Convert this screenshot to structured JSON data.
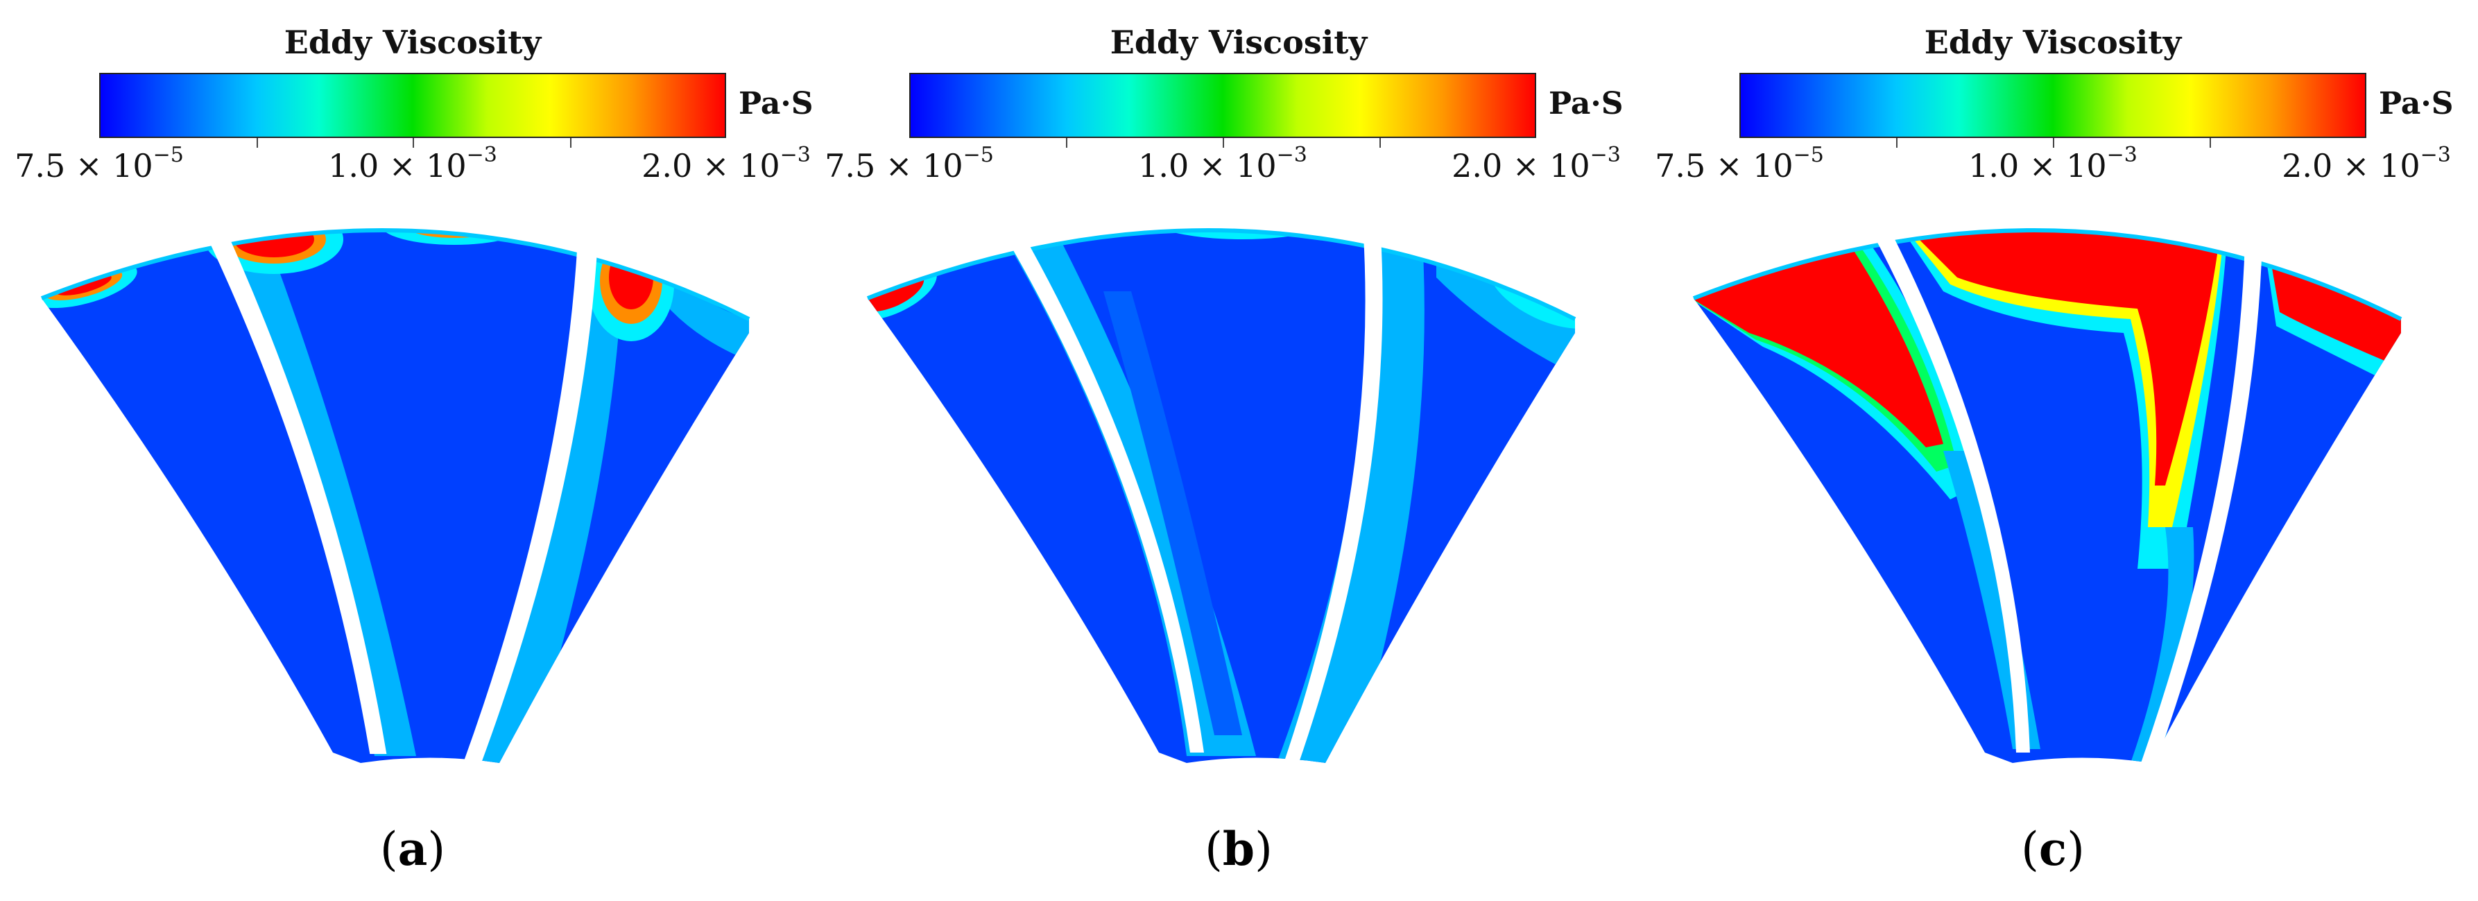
{
  "figure": {
    "colorbar": {
      "title": "Eddy Viscosity",
      "unit": "Pa·S",
      "min_label": {
        "mantissa": "7.5 × 10",
        "exponent": "−5"
      },
      "mid_label": {
        "mantissa": "1.0 × 10",
        "exponent": "−3"
      },
      "max_label": {
        "mantissa": "2.0 × 10",
        "exponent": "−3"
      },
      "colors": [
        "#0000ff",
        "#00c8ff",
        "#00e000",
        "#ffff00",
        "#ff0000"
      ]
    },
    "panels": [
      {
        "letter": "a"
      },
      {
        "letter": "b"
      },
      {
        "letter": "c"
      }
    ],
    "colors": {
      "background_flow": "#0040ff",
      "low": "#00b4ff",
      "cyan": "#00f0ff",
      "green": "#00ff60",
      "yellow": "#ffff00",
      "orange": "#ff8c00",
      "high": "#ff0000",
      "blade": "#ffffff"
    }
  }
}
